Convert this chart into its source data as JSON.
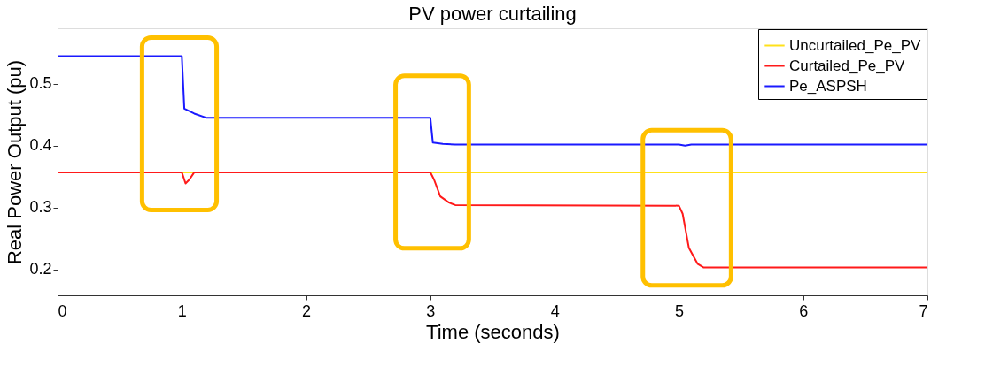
{
  "chart_data": {
    "type": "line",
    "title": "PV power curtailing",
    "xlabel": "Time (seconds)",
    "ylabel": "Real Power Output (pu)",
    "xlim": [
      0,
      7
    ],
    "xticks": [
      0,
      1,
      2,
      3,
      4,
      5,
      6,
      7
    ],
    "ylim": [
      0.158,
      0.59
    ],
    "yticks": [
      0.2,
      0.3,
      0.4,
      0.5
    ],
    "legend": "top right",
    "grid": false,
    "line_style": "solid",
    "marker": "none",
    "series": [
      {
        "name": "Uncurtailed_Pe_PV",
        "color": "#ffe11a",
        "x": [
          1.0,
          7
        ],
        "values": [
          0.357,
          0.357
        ]
      },
      {
        "name": "Curtailed_Pe_PV",
        "color": "#ff1a1a",
        "x": [
          0,
          1.0,
          1.03,
          1.06,
          1.1,
          3.0,
          3.03,
          3.08,
          3.15,
          3.2,
          5.0,
          5.03,
          5.08,
          5.15,
          5.2,
          7
        ],
        "values": [
          0.357,
          0.357,
          0.339,
          0.345,
          0.357,
          0.357,
          0.345,
          0.318,
          0.308,
          0.304,
          0.303,
          0.29,
          0.235,
          0.209,
          0.203,
          0.203
        ]
      },
      {
        "name": "Pe_ASPSH",
        "color": "#1a1aff",
        "x": [
          0,
          1.0,
          1.02,
          1.1,
          1.2,
          3.0,
          3.02,
          3.1,
          3.2,
          5.0,
          5.05,
          5.1,
          7
        ],
        "values": [
          0.545,
          0.545,
          0.46,
          0.452,
          0.445,
          0.445,
          0.405,
          0.403,
          0.402,
          0.402,
          0.4,
          0.402,
          0.402
        ]
      }
    ]
  }
}
